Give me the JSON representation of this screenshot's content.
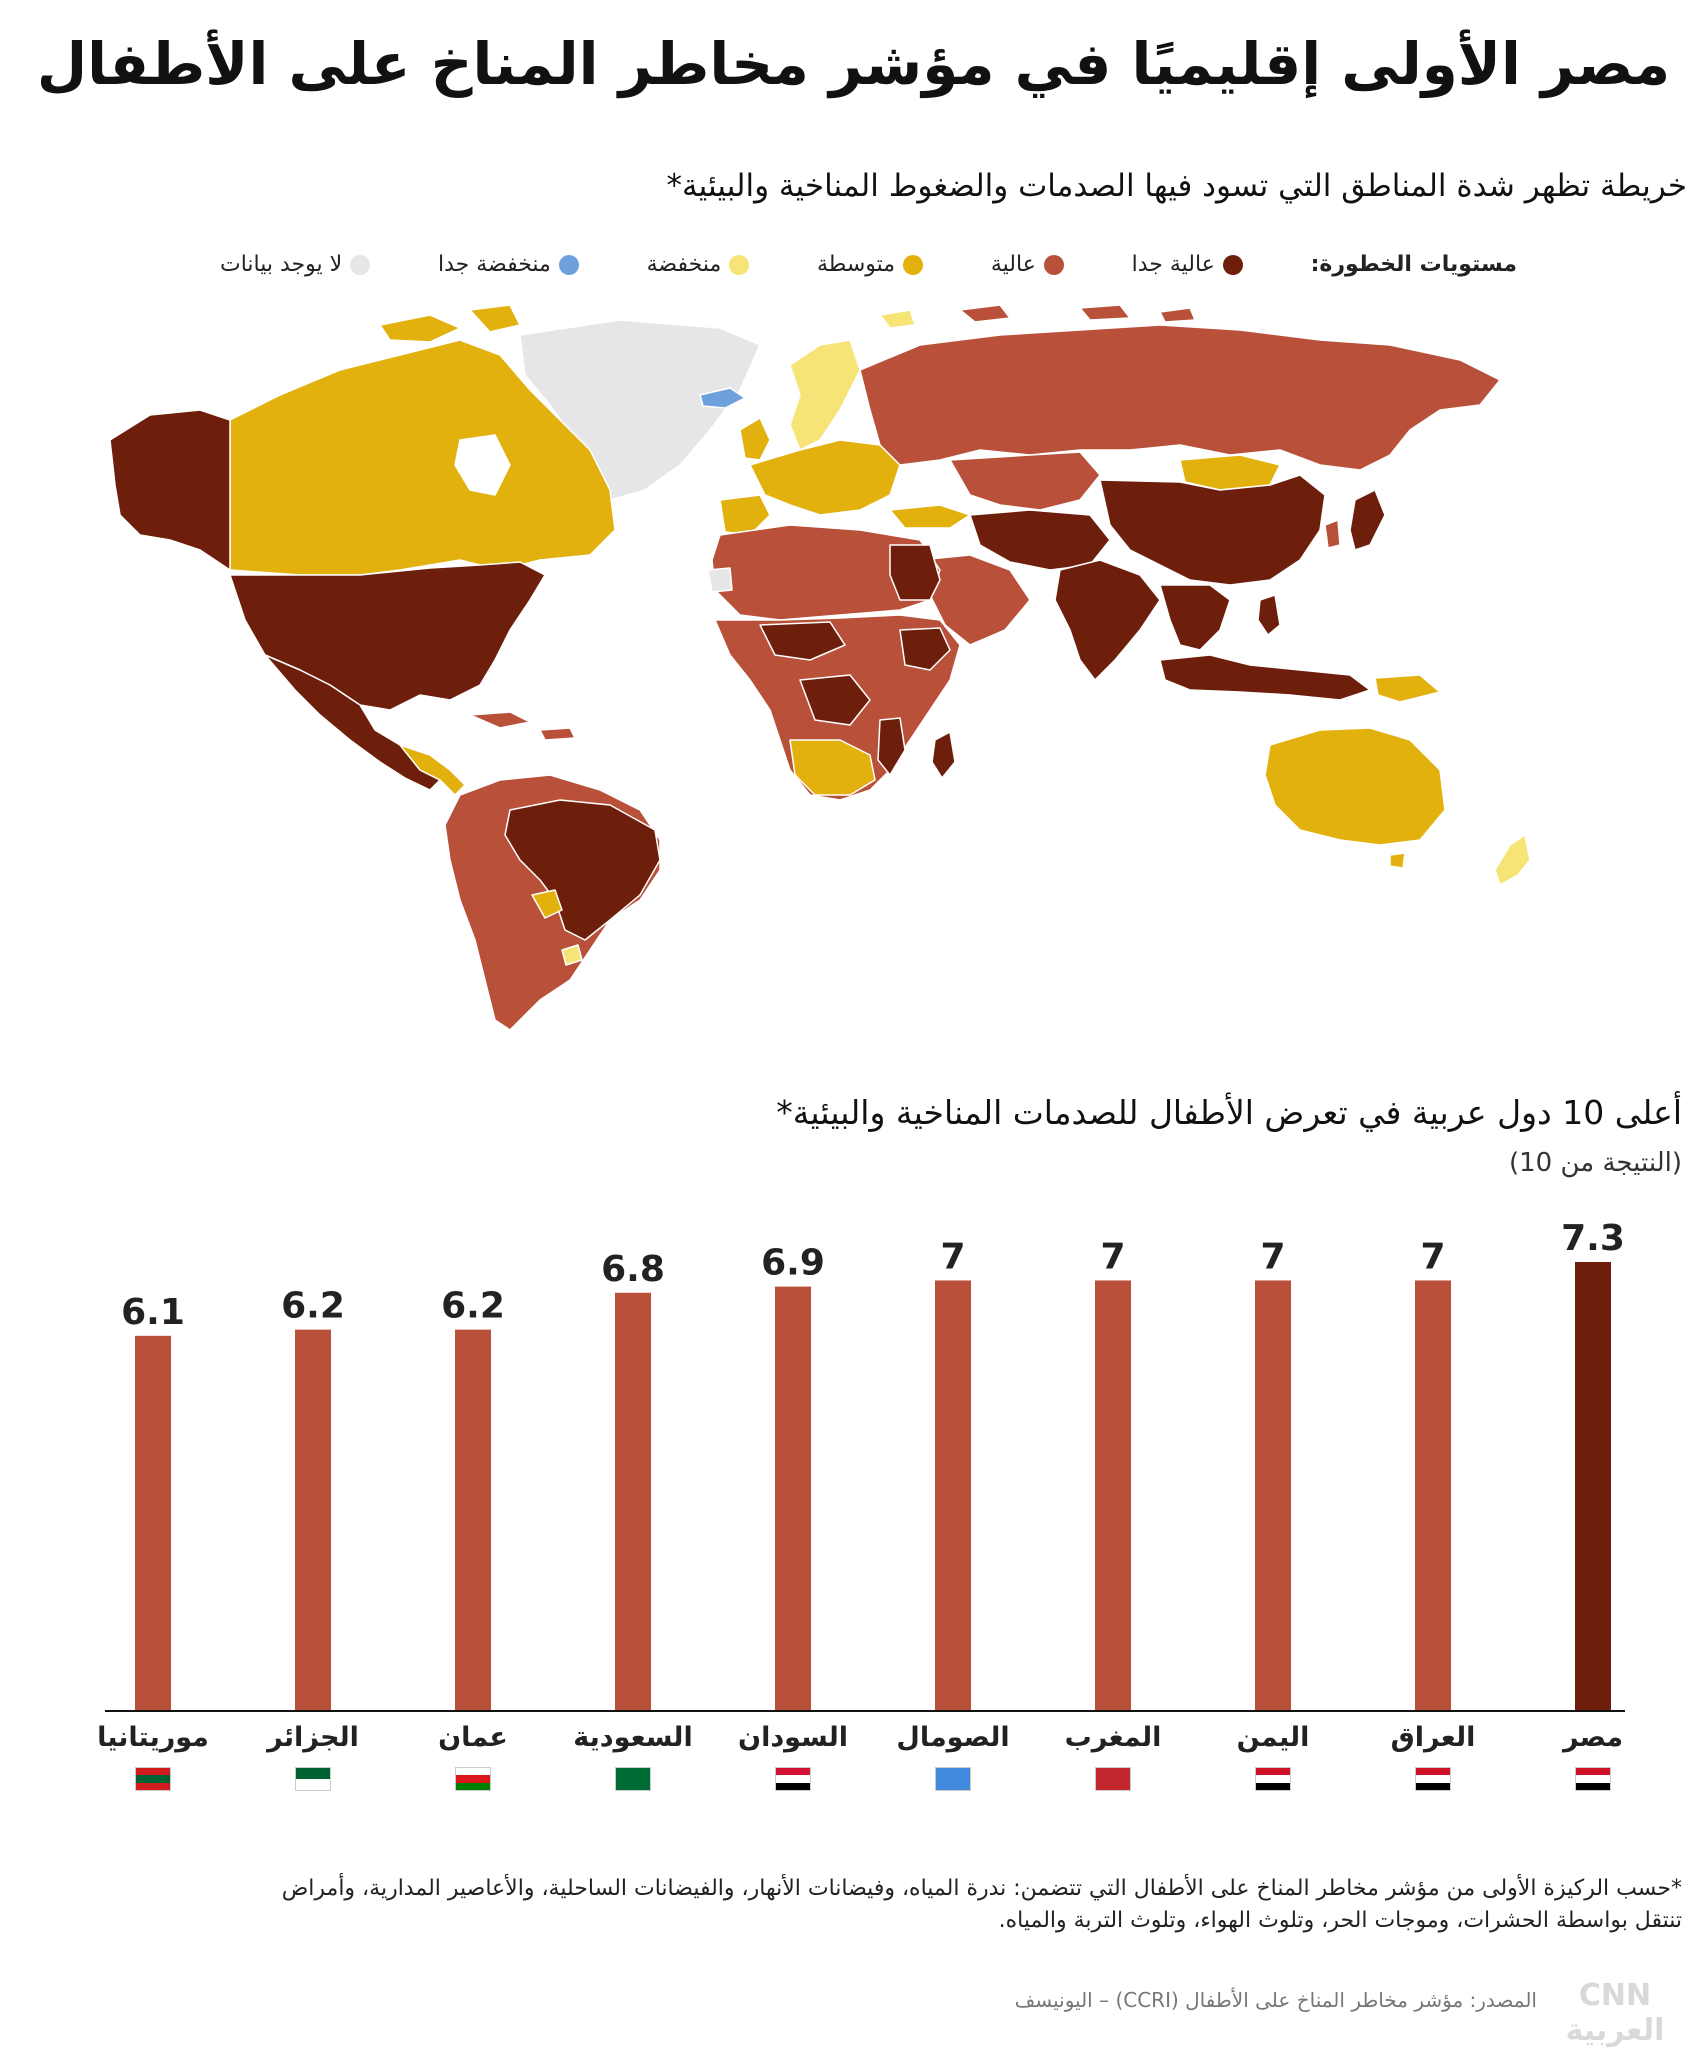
{
  "title": "مصر الأولى إقليميًا في مؤشر مخاطر المناخ على الأطفال",
  "map": {
    "subtitle": "خريطة تظهر شدة المناطق التي تسود فيها الصدمات والضغوط المناخية والبيئية*",
    "legend_title": "مستويات الخطورة:",
    "legend": [
      {
        "label": "عالية جدا",
        "color": "#6e1f0c"
      },
      {
        "label": "عالية",
        "color": "#b8503a"
      },
      {
        "label": "متوسطة",
        "color": "#e2b10e"
      },
      {
        "label": "منخفضة",
        "color": "#f6e477"
      },
      {
        "label": "منخفضة جدا",
        "color": "#6ea0dc"
      },
      {
        "label": "لا يوجد بيانات",
        "color": "#e6e6e6"
      }
    ]
  },
  "chart": {
    "title": "أعلى 10 دول عربية في تعرض الأطفال للصدمات المناخية والبيئية*",
    "subtitle": "(النتيجة من 10)"
  },
  "chart_data": {
    "type": "bar",
    "categories": [
      "مصر",
      "العراق",
      "اليمن",
      "المغرب",
      "الصومال",
      "السودان",
      "السعودية",
      "عمان",
      "الجزائر",
      "موريتانيا"
    ],
    "values": [
      7.3,
      7,
      7,
      7,
      7,
      6.9,
      6.8,
      6.2,
      6.2,
      6.1
    ],
    "value_labels": [
      "7.3",
      "7",
      "7",
      "7",
      "7",
      "6.9",
      "6.8",
      "6.2",
      "6.2",
      "6.1"
    ],
    "highlight_index": 0,
    "bar_color": "#b8503a",
    "highlight_color": "#6e1f0c",
    "ylim": [
      0,
      7.3
    ],
    "grid": false,
    "title": "أعلى 10 دول عربية في تعرض الأطفال للصدمات المناخية والبيئية*",
    "subtitle": "(النتيجة من 10)"
  },
  "footnote": {
    "line1": "*حسب الركيزة الأولى من مؤشر مخاطر المناخ على الأطفال التي تتضمن: ندرة المياه، وفيضانات الأنهار، والفيضانات الساحلية، والأعاصير المدارية، وأمراض",
    "line2": "تنتقل بواسطة الحشرات، وموجات الحر، وتلوث الهواء، وتلوث التربة والمياه."
  },
  "source": "المصدر: مؤشر مخاطر المناخ على الأطفال (CCRI) – اليونيسف",
  "logo_text": "CNN العربية"
}
